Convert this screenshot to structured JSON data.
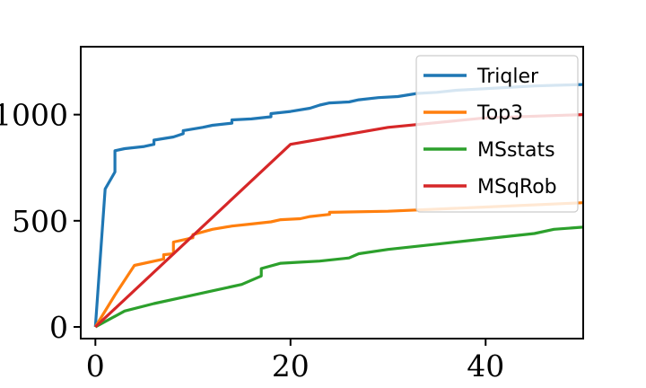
{
  "chart_data": {
    "type": "line",
    "title": "",
    "xlabel": "",
    "ylabel": "",
    "xlim": [
      -1.5,
      50
    ],
    "ylim": [
      -55,
      1320
    ],
    "x_ticks": [
      0,
      20,
      40
    ],
    "y_ticks": [
      0,
      500,
      1000
    ],
    "x_tick_labels": [
      "0",
      "20",
      "40"
    ],
    "y_tick_labels": [
      "0",
      "500",
      "1000"
    ],
    "grid": false,
    "legend_position": "top-right",
    "series": [
      {
        "name": "Triqler",
        "color": "#1f77b4",
        "points": [
          [
            0,
            0
          ],
          [
            1,
            650
          ],
          [
            2,
            730
          ],
          [
            2,
            830
          ],
          [
            3,
            840
          ],
          [
            5,
            850
          ],
          [
            6,
            860
          ],
          [
            6,
            880
          ],
          [
            8,
            895
          ],
          [
            9,
            910
          ],
          [
            9,
            925
          ],
          [
            11,
            940
          ],
          [
            12,
            950
          ],
          [
            14,
            960
          ],
          [
            14,
            975
          ],
          [
            16,
            980
          ],
          [
            18,
            990
          ],
          [
            18,
            1005
          ],
          [
            20,
            1015
          ],
          [
            22,
            1030
          ],
          [
            23,
            1045
          ],
          [
            24,
            1055
          ],
          [
            26,
            1060
          ],
          [
            27,
            1070
          ],
          [
            29,
            1080
          ],
          [
            31,
            1085
          ],
          [
            33,
            1100
          ],
          [
            35,
            1105
          ],
          [
            37,
            1115
          ],
          [
            39,
            1120
          ],
          [
            41,
            1125
          ],
          [
            43,
            1130
          ],
          [
            45,
            1135
          ],
          [
            47,
            1138
          ],
          [
            50,
            1142
          ]
        ]
      },
      {
        "name": "Top3",
        "color": "#ff7f0e",
        "points": [
          [
            0,
            0
          ],
          [
            2,
            150
          ],
          [
            4,
            290
          ],
          [
            7,
            320
          ],
          [
            7,
            340
          ],
          [
            8,
            345
          ],
          [
            8,
            400
          ],
          [
            10,
            420
          ],
          [
            10,
            435
          ],
          [
            12,
            460
          ],
          [
            14,
            475
          ],
          [
            16,
            485
          ],
          [
            18,
            495
          ],
          [
            19,
            505
          ],
          [
            21,
            510
          ],
          [
            22,
            520
          ],
          [
            24,
            530
          ],
          [
            24,
            540
          ],
          [
            30,
            545
          ],
          [
            40,
            565
          ],
          [
            50,
            585
          ]
        ]
      },
      {
        "name": "MSstats",
        "color": "#2ca02c",
        "points": [
          [
            0,
            0
          ],
          [
            3,
            75
          ],
          [
            6,
            110
          ],
          [
            9,
            140
          ],
          [
            12,
            170
          ],
          [
            15,
            200
          ],
          [
            17,
            240
          ],
          [
            17,
            275
          ],
          [
            19,
            300
          ],
          [
            21,
            305
          ],
          [
            23,
            310
          ],
          [
            26,
            325
          ],
          [
            27,
            345
          ],
          [
            30,
            365
          ],
          [
            35,
            390
          ],
          [
            40,
            415
          ],
          [
            45,
            440
          ],
          [
            47,
            460
          ],
          [
            50,
            470
          ]
        ]
      },
      {
        "name": "MSqRob",
        "color": "#d62728",
        "points": [
          [
            0,
            0
          ],
          [
            20,
            860
          ],
          [
            30,
            940
          ],
          [
            40,
            985
          ],
          [
            50,
            1000
          ]
        ]
      }
    ]
  }
}
